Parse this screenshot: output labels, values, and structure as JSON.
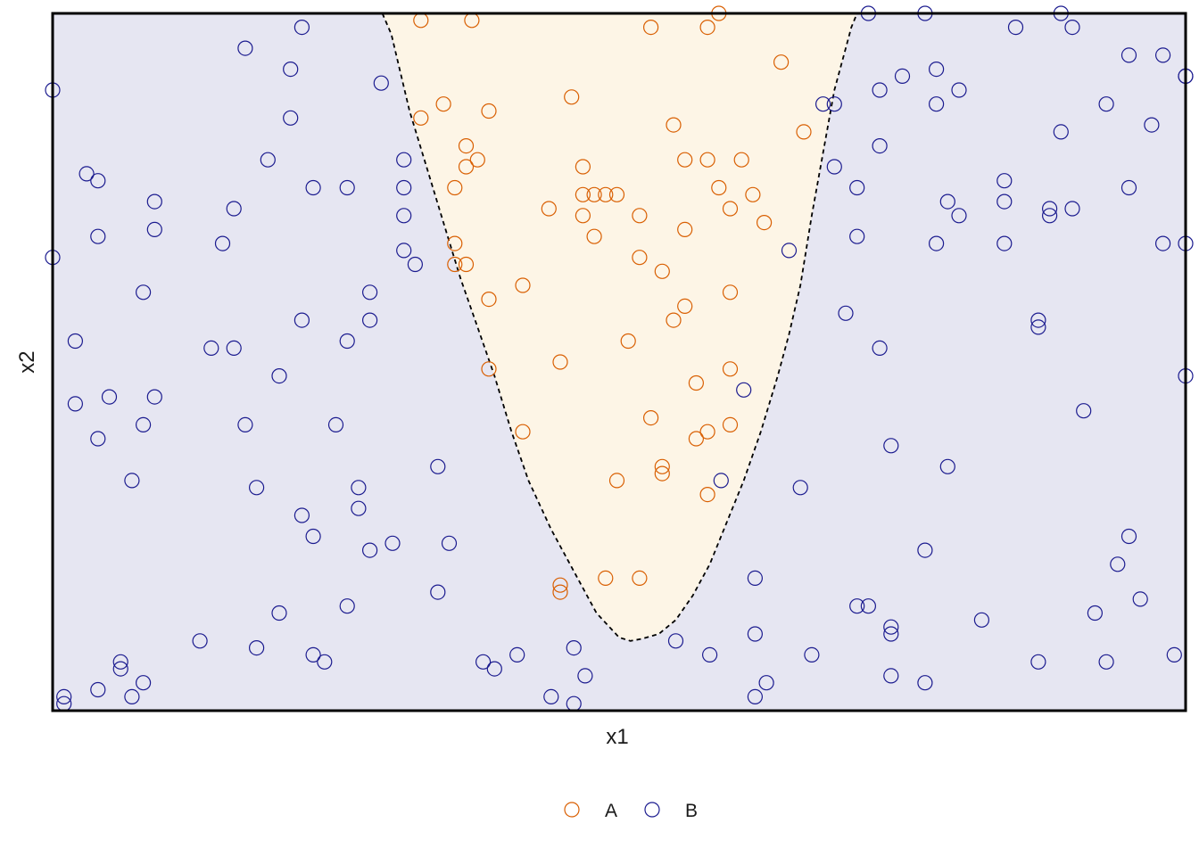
{
  "chart_data": {
    "type": "scatter",
    "title": "",
    "xlabel": "x1",
    "ylabel": "x2",
    "xlim": [
      0,
      1
    ],
    "ylim": [
      0,
      1
    ],
    "grid": false,
    "legend_position": "bottom",
    "colors": {
      "A": "#d95f02",
      "B": "#1b1b8f",
      "region_A": "#fdf5e6",
      "region_B": "#e6e6f2",
      "boundary": "#000000",
      "frame": "#000000"
    },
    "boundary": {
      "style": "dashed",
      "points": [
        [
          0.291,
          1.0
        ],
        [
          0.299,
          0.97
        ],
        [
          0.315,
          0.86
        ],
        [
          0.33,
          0.78
        ],
        [
          0.345,
          0.7
        ],
        [
          0.36,
          0.62
        ],
        [
          0.375,
          0.55
        ],
        [
          0.39,
          0.48
        ],
        [
          0.405,
          0.4
        ],
        [
          0.42,
          0.33
        ],
        [
          0.44,
          0.26
        ],
        [
          0.46,
          0.2
        ],
        [
          0.48,
          0.14
        ],
        [
          0.5,
          0.105
        ],
        [
          0.51,
          0.1
        ],
        [
          0.52,
          0.103
        ],
        [
          0.535,
          0.11
        ],
        [
          0.55,
          0.13
        ],
        [
          0.565,
          0.165
        ],
        [
          0.58,
          0.21
        ],
        [
          0.595,
          0.27
        ],
        [
          0.61,
          0.33
        ],
        [
          0.625,
          0.4
        ],
        [
          0.64,
          0.48
        ],
        [
          0.65,
          0.54
        ],
        [
          0.66,
          0.61
        ],
        [
          0.67,
          0.71
        ],
        [
          0.68,
          0.8
        ],
        [
          0.69,
          0.89
        ],
        [
          0.7,
          0.95
        ],
        [
          0.705,
          0.98
        ],
        [
          0.71,
          1.0
        ]
      ]
    },
    "series": [
      {
        "name": "A",
        "points": [
          [
            0.325,
            0.99
          ],
          [
            0.325,
            0.85
          ],
          [
            0.345,
            0.87
          ],
          [
            0.355,
            0.75
          ],
          [
            0.355,
            0.67
          ],
          [
            0.355,
            0.64
          ],
          [
            0.365,
            0.81
          ],
          [
            0.365,
            0.78
          ],
          [
            0.365,
            0.64
          ],
          [
            0.375,
            0.79
          ],
          [
            0.385,
            0.86
          ],
          [
            0.385,
            0.59
          ],
          [
            0.385,
            0.49
          ],
          [
            0.415,
            0.61
          ],
          [
            0.415,
            0.4
          ],
          [
            0.438,
            0.72
          ],
          [
            0.448,
            0.5
          ],
          [
            0.458,
            0.88
          ],
          [
            0.448,
            0.18
          ],
          [
            0.448,
            0.17
          ],
          [
            0.468,
            0.78
          ],
          [
            0.468,
            0.74
          ],
          [
            0.478,
            0.74
          ],
          [
            0.468,
            0.71
          ],
          [
            0.478,
            0.68
          ],
          [
            0.488,
            0.74
          ],
          [
            0.498,
            0.74
          ],
          [
            0.488,
            0.19
          ],
          [
            0.498,
            0.33
          ],
          [
            0.508,
            0.53
          ],
          [
            0.518,
            0.71
          ],
          [
            0.518,
            0.65
          ],
          [
            0.518,
            0.19
          ],
          [
            0.528,
            0.42
          ],
          [
            0.528,
            0.98
          ],
          [
            0.538,
            0.63
          ],
          [
            0.538,
            0.35
          ],
          [
            0.538,
            0.34
          ],
          [
            0.548,
            0.84
          ],
          [
            0.548,
            0.56
          ],
          [
            0.558,
            0.79
          ],
          [
            0.558,
            0.69
          ],
          [
            0.558,
            0.58
          ],
          [
            0.568,
            0.47
          ],
          [
            0.568,
            0.39
          ],
          [
            0.578,
            0.79
          ],
          [
            0.578,
            0.4
          ],
          [
            0.578,
            0.98
          ],
          [
            0.588,
            1.0
          ],
          [
            0.578,
            0.31
          ],
          [
            0.588,
            0.75
          ],
          [
            0.598,
            0.72
          ],
          [
            0.598,
            0.6
          ],
          [
            0.598,
            0.49
          ],
          [
            0.598,
            0.41
          ],
          [
            0.608,
            0.79
          ],
          [
            0.618,
            0.74
          ],
          [
            0.628,
            0.7
          ],
          [
            0.643,
            0.93
          ],
          [
            0.663,
            0.83
          ],
          [
            0.37,
            0.99
          ]
        ]
      },
      {
        "name": "B",
        "points": [
          [
            0.0,
            0.89
          ],
          [
            0.0,
            0.65
          ],
          [
            0.01,
            0.02
          ],
          [
            0.01,
            0.01
          ],
          [
            0.02,
            0.53
          ],
          [
            0.02,
            0.44
          ],
          [
            0.03,
            0.77
          ],
          [
            0.04,
            0.76
          ],
          [
            0.04,
            0.68
          ],
          [
            0.04,
            0.39
          ],
          [
            0.04,
            0.03
          ],
          [
            0.05,
            0.45
          ],
          [
            0.06,
            0.07
          ],
          [
            0.06,
            0.06
          ],
          [
            0.07,
            0.33
          ],
          [
            0.07,
            0.02
          ],
          [
            0.08,
            0.6
          ],
          [
            0.08,
            0.41
          ],
          [
            0.08,
            0.04
          ],
          [
            0.09,
            0.73
          ],
          [
            0.09,
            0.69
          ],
          [
            0.09,
            0.45
          ],
          [
            0.13,
            0.1
          ],
          [
            0.14,
            0.52
          ],
          [
            0.15,
            0.67
          ],
          [
            0.16,
            0.72
          ],
          [
            0.16,
            0.52
          ],
          [
            0.17,
            0.95
          ],
          [
            0.17,
            0.41
          ],
          [
            0.18,
            0.09
          ],
          [
            0.18,
            0.32
          ],
          [
            0.19,
            0.79
          ],
          [
            0.2,
            0.48
          ],
          [
            0.2,
            0.14
          ],
          [
            0.21,
            0.92
          ],
          [
            0.21,
            0.85
          ],
          [
            0.22,
            0.98
          ],
          [
            0.22,
            0.56
          ],
          [
            0.22,
            0.28
          ],
          [
            0.23,
            0.75
          ],
          [
            0.23,
            0.25
          ],
          [
            0.23,
            0.08
          ],
          [
            0.24,
            0.07
          ],
          [
            0.25,
            0.41
          ],
          [
            0.26,
            0.75
          ],
          [
            0.26,
            0.53
          ],
          [
            0.26,
            0.15
          ],
          [
            0.27,
            0.32
          ],
          [
            0.27,
            0.29
          ],
          [
            0.28,
            0.6
          ],
          [
            0.28,
            0.56
          ],
          [
            0.28,
            0.23
          ],
          [
            0.29,
            0.9
          ],
          [
            0.3,
            0.24
          ],
          [
            0.31,
            0.79
          ],
          [
            0.31,
            0.75
          ],
          [
            0.31,
            0.71
          ],
          [
            0.31,
            0.66
          ],
          [
            0.32,
            0.64
          ],
          [
            0.34,
            0.35
          ],
          [
            0.34,
            0.17
          ],
          [
            0.35,
            0.24
          ],
          [
            0.38,
            0.07
          ],
          [
            0.39,
            0.06
          ],
          [
            0.41,
            0.08
          ],
          [
            0.44,
            0.02
          ],
          [
            0.46,
            0.01
          ],
          [
            0.46,
            0.09
          ],
          [
            0.47,
            0.05
          ],
          [
            0.55,
            0.1
          ],
          [
            0.58,
            0.08
          ],
          [
            0.59,
            0.33
          ],
          [
            0.61,
            0.46
          ],
          [
            0.62,
            0.19
          ],
          [
            0.62,
            0.11
          ],
          [
            0.62,
            0.02
          ],
          [
            0.63,
            0.04
          ],
          [
            0.65,
            0.66
          ],
          [
            0.66,
            0.32
          ],
          [
            0.67,
            0.08
          ],
          [
            0.68,
            0.87
          ],
          [
            0.69,
            0.87
          ],
          [
            0.69,
            0.78
          ],
          [
            0.7,
            0.57
          ],
          [
            0.71,
            0.15
          ],
          [
            0.71,
            0.75
          ],
          [
            0.71,
            0.68
          ],
          [
            0.72,
            0.15
          ],
          [
            0.73,
            0.89
          ],
          [
            0.73,
            0.81
          ],
          [
            0.73,
            0.52
          ],
          [
            0.74,
            0.38
          ],
          [
            0.74,
            0.11
          ],
          [
            0.74,
            0.12
          ],
          [
            0.74,
            0.05
          ],
          [
            0.75,
            0.91
          ],
          [
            0.77,
            0.23
          ],
          [
            0.77,
            0.04
          ],
          [
            0.78,
            0.92
          ],
          [
            0.78,
            0.87
          ],
          [
            0.78,
            0.67
          ],
          [
            0.79,
            0.35
          ],
          [
            0.79,
            0.73
          ],
          [
            0.8,
            0.71
          ],
          [
            0.8,
            0.89
          ],
          [
            0.82,
            0.13
          ],
          [
            0.84,
            0.76
          ],
          [
            0.84,
            0.73
          ],
          [
            0.84,
            0.67
          ],
          [
            0.87,
            0.56
          ],
          [
            0.87,
            0.55
          ],
          [
            0.87,
            0.07
          ],
          [
            0.88,
            0.72
          ],
          [
            0.88,
            0.71
          ],
          [
            0.89,
            0.83
          ],
          [
            0.9,
            0.98
          ],
          [
            0.9,
            0.72
          ],
          [
            0.91,
            0.43
          ],
          [
            0.92,
            0.14
          ],
          [
            0.93,
            0.87
          ],
          [
            0.93,
            0.07
          ],
          [
            0.94,
            0.21
          ],
          [
            0.95,
            0.94
          ],
          [
            0.95,
            0.75
          ],
          [
            0.95,
            0.25
          ],
          [
            0.96,
            0.16
          ],
          [
            0.97,
            0.84
          ],
          [
            0.98,
            0.94
          ],
          [
            0.98,
            0.67
          ],
          [
            0.99,
            0.08
          ],
          [
            1.0,
            0.48
          ],
          [
            1.0,
            0.91
          ],
          [
            1.0,
            0.67
          ],
          [
            1.0,
            0.91
          ],
          [
            0.72,
            1.0
          ],
          [
            0.77,
            1.0
          ],
          [
            0.85,
            0.98
          ],
          [
            0.89,
            1.0
          ]
        ]
      }
    ]
  }
}
